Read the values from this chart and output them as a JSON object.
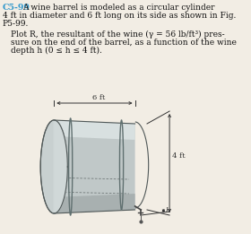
{
  "title_label": "C5-99",
  "title_color": "#3399cc",
  "body_text_line1": "A wine barrel is modeled as a circular cylinder",
  "body_text_line2": "4 ft in diameter and 6 ft long on its side as shown in Fig.",
  "body_text_line3": "P5-99.",
  "plot_text_line1": "Plot R, the resultant of the wine (γ = 56 lb/ft³) pres-",
  "plot_text_line2": "sure on the end of the barrel, as a function of the wine",
  "plot_text_line3": "depth h (0 ≤ h ≤ 4 ft).",
  "bg_color": "#f2ede4",
  "barrel_body_color": "#b8c0c0",
  "dim_line_color": "#333333",
  "font_size_title": 6.8,
  "font_size_body": 6.5
}
